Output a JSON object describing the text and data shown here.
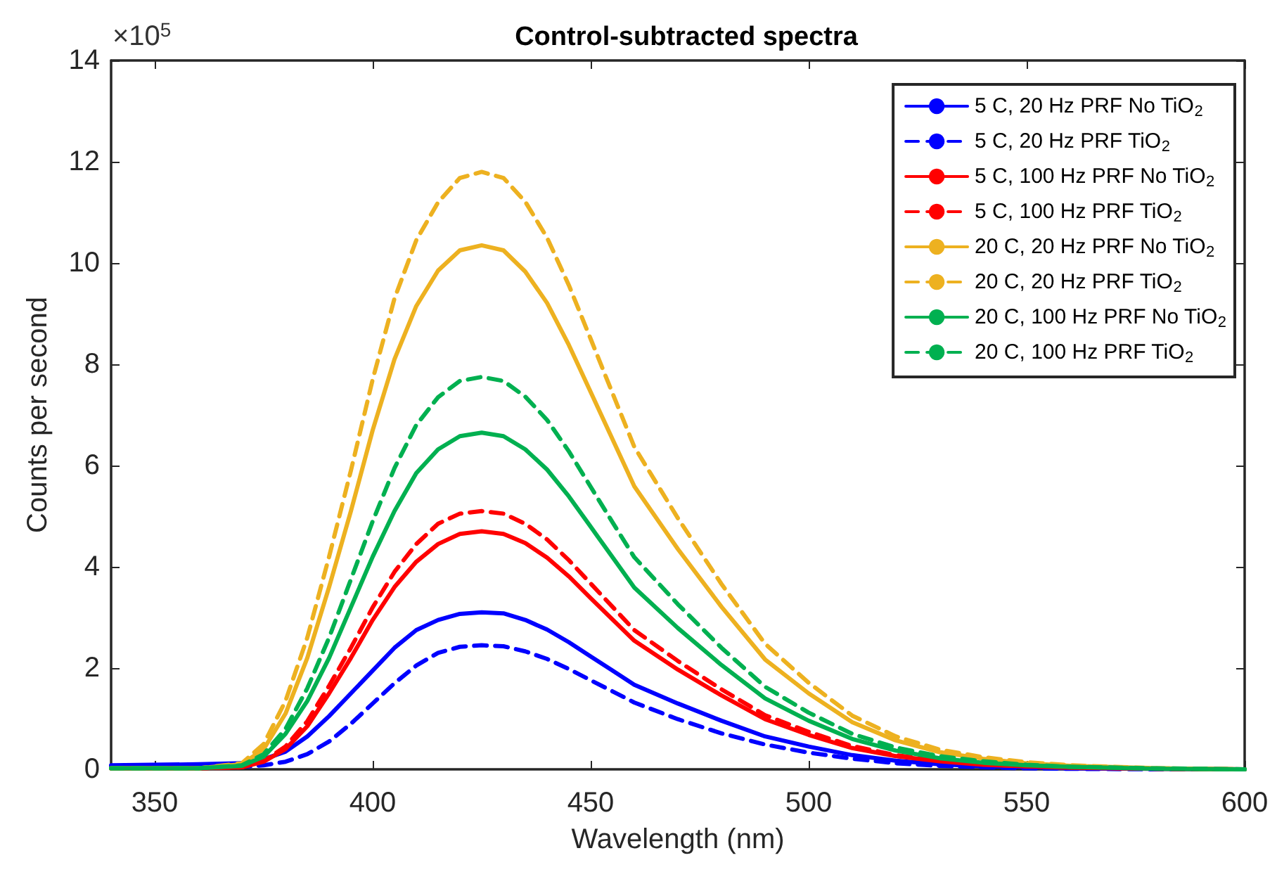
{
  "chart_data": {
    "type": "line",
    "title": "Control-subtracted spectra",
    "xlabel": "Wavelength (nm)",
    "ylabel": "Counts per second",
    "annotations": [
      "×10$^{5}$"
    ],
    "x": [
      340,
      360,
      370,
      375,
      380,
      385,
      390,
      395,
      400,
      405,
      410,
      415,
      420,
      425,
      430,
      435,
      440,
      445,
      450,
      455,
      460,
      470,
      480,
      490,
      500,
      510,
      520,
      530,
      540,
      550,
      560,
      580,
      600
    ],
    "xlim": [
      340,
      600
    ],
    "xticks": [
      350,
      400,
      450,
      500,
      550,
      600
    ],
    "ylim": [
      0,
      14
    ],
    "yticks": [
      0,
      2,
      4,
      6,
      8,
      10,
      12,
      14
    ],
    "grid": false,
    "legend": "top right",
    "marker": "none",
    "series": [
      {
        "name": "5 C, 20 Hz PRF No TiO$_{2}$",
        "color": "#0000ff",
        "line_style": "solid",
        "values": [
          0.08,
          0.1,
          0.12,
          0.2,
          0.35,
          0.65,
          1.05,
          1.5,
          1.95,
          2.4,
          2.75,
          2.95,
          3.07,
          3.1,
          3.08,
          2.95,
          2.76,
          2.51,
          2.23,
          1.95,
          1.67,
          1.3,
          0.96,
          0.65,
          0.45,
          0.28,
          0.17,
          0.1,
          0.06,
          0.04,
          0.02,
          0.01,
          0
        ]
      },
      {
        "name": "5 C, 20 Hz PRF TiO$_{2}$",
        "color": "#0000ff",
        "line_style": "dashed",
        "values": [
          0.05,
          0.05,
          0.05,
          0.08,
          0.15,
          0.3,
          0.55,
          0.9,
          1.3,
          1.7,
          2.05,
          2.3,
          2.42,
          2.45,
          2.43,
          2.33,
          2.18,
          1.98,
          1.76,
          1.54,
          1.32,
          0.99,
          0.71,
          0.49,
          0.33,
          0.21,
          0.12,
          0.07,
          0.04,
          0.02,
          0.01,
          0,
          0
        ]
      },
      {
        "name": "5 C, 100 Hz PRF No TiO$_{2}$",
        "color": "#ff0000",
        "line_style": "solid",
        "values": [
          0.02,
          0.02,
          0.04,
          0.15,
          0.4,
          0.85,
          1.5,
          2.2,
          2.95,
          3.6,
          4.1,
          4.45,
          4.65,
          4.7,
          4.65,
          4.47,
          4.18,
          3.81,
          3.38,
          2.96,
          2.54,
          1.97,
          1.46,
          0.99,
          0.68,
          0.42,
          0.26,
          0.16,
          0.09,
          0.06,
          0.03,
          0.01,
          0
        ]
      },
      {
        "name": "5 C, 100 Hz PRF TiO$_{2}$",
        "color": "#ff0000",
        "line_style": "dashed",
        "values": [
          0.02,
          0.02,
          0.04,
          0.16,
          0.45,
          0.95,
          1.65,
          2.4,
          3.2,
          3.9,
          4.45,
          4.85,
          5.05,
          5.1,
          5.05,
          4.85,
          4.54,
          4.13,
          3.67,
          3.21,
          2.75,
          2.14,
          1.58,
          1.07,
          0.74,
          0.46,
          0.28,
          0.17,
          0.1,
          0.06,
          0.04,
          0.01,
          0
        ]
      },
      {
        "name": "20 C, 20 Hz PRF No TiO$_{2}$",
        "color": "#edb120",
        "line_style": "solid",
        "values": [
          0.02,
          0.02,
          0.1,
          0.4,
          1.1,
          2.2,
          3.6,
          5.1,
          6.7,
          8.1,
          9.15,
          9.85,
          10.25,
          10.35,
          10.25,
          9.83,
          9.21,
          8.38,
          7.45,
          6.52,
          5.59,
          4.35,
          3.21,
          2.17,
          1.5,
          0.93,
          0.57,
          0.34,
          0.21,
          0.12,
          0.07,
          0.02,
          0
        ]
      },
      {
        "name": "20 C, 20 Hz PRF TiO$_{2}$",
        "color": "#edb120",
        "line_style": "dashed",
        "values": [
          0.02,
          0.02,
          0.12,
          0.5,
          1.35,
          2.6,
          4.2,
          5.9,
          7.7,
          9.3,
          10.45,
          11.2,
          11.68,
          11.8,
          11.68,
          11.21,
          10.5,
          9.56,
          8.5,
          7.43,
          6.37,
          4.96,
          3.66,
          2.48,
          1.71,
          1.06,
          0.65,
          0.39,
          0.24,
          0.14,
          0.08,
          0.02,
          0
        ]
      },
      {
        "name": "20 C, 100 Hz PRF No TiO$_{2}$",
        "color": "#00b050",
        "line_style": "solid",
        "values": [
          0.02,
          0.02,
          0.07,
          0.25,
          0.7,
          1.35,
          2.2,
          3.2,
          4.2,
          5.1,
          5.85,
          6.32,
          6.58,
          6.65,
          6.58,
          6.32,
          5.92,
          5.39,
          4.79,
          4.19,
          3.59,
          2.79,
          2.06,
          1.4,
          0.96,
          0.6,
          0.37,
          0.22,
          0.13,
          0.08,
          0.05,
          0.01,
          0
        ]
      },
      {
        "name": "20 C, 100 Hz PRF TiO$_{2}$",
        "color": "#00b050",
        "line_style": "dashed",
        "values": [
          0.02,
          0.02,
          0.08,
          0.3,
          0.8,
          1.6,
          2.6,
          3.75,
          4.9,
          5.95,
          6.8,
          7.35,
          7.67,
          7.75,
          7.67,
          7.36,
          6.9,
          6.28,
          5.58,
          4.88,
          4.19,
          3.26,
          2.4,
          1.63,
          1.12,
          0.7,
          0.43,
          0.26,
          0.16,
          0.09,
          0.05,
          0.02,
          0
        ]
      }
    ]
  }
}
